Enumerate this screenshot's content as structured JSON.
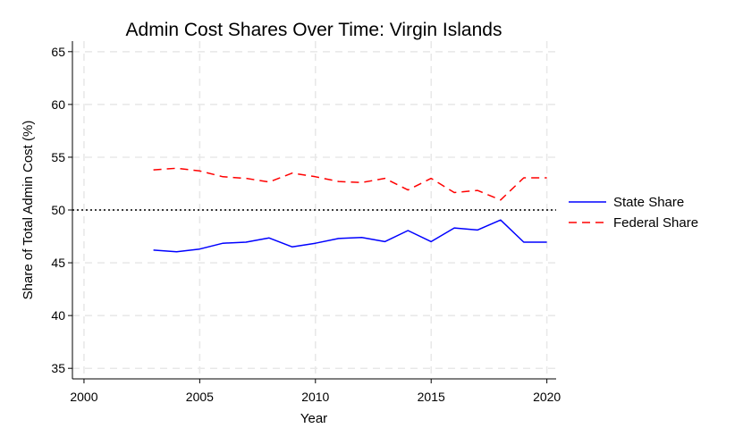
{
  "chart_data": {
    "type": "line",
    "title": "Admin Cost Shares Over Time: Virgin Islands",
    "xlabel": "Year",
    "ylabel": "Share of Total Admin Cost (%)",
    "xlim": [
      1999.5,
      2020.4
    ],
    "ylim": [
      34,
      66
    ],
    "xticks": [
      2000,
      2005,
      2010,
      2015,
      2020
    ],
    "yticks": [
      35,
      40,
      45,
      50,
      55,
      60,
      65
    ],
    "grid": true,
    "legend_position": "right",
    "reference_line": {
      "y": 50,
      "style": "dotted",
      "color": "#000000"
    },
    "x": [
      2003,
      2004,
      2005,
      2006,
      2007,
      2008,
      2009,
      2010,
      2011,
      2012,
      2013,
      2014,
      2015,
      2016,
      2017,
      2018,
      2019,
      2020
    ],
    "series": [
      {
        "name": "State Share",
        "color": "#0000ff",
        "dash": "solid",
        "values": [
          46.2,
          46.05,
          46.3,
          46.85,
          46.95,
          47.35,
          46.5,
          46.85,
          47.3,
          47.4,
          47.0,
          48.05,
          47.0,
          48.3,
          48.1,
          49.05,
          46.95,
          46.95
        ]
      },
      {
        "name": "Federal Share",
        "color": "#ff0000",
        "dash": "dashed",
        "values": [
          53.8,
          53.95,
          53.7,
          53.15,
          53.0,
          52.65,
          53.5,
          53.15,
          52.7,
          52.6,
          53.0,
          51.9,
          53.0,
          51.65,
          51.85,
          50.95,
          53.05,
          53.05
        ]
      }
    ]
  }
}
